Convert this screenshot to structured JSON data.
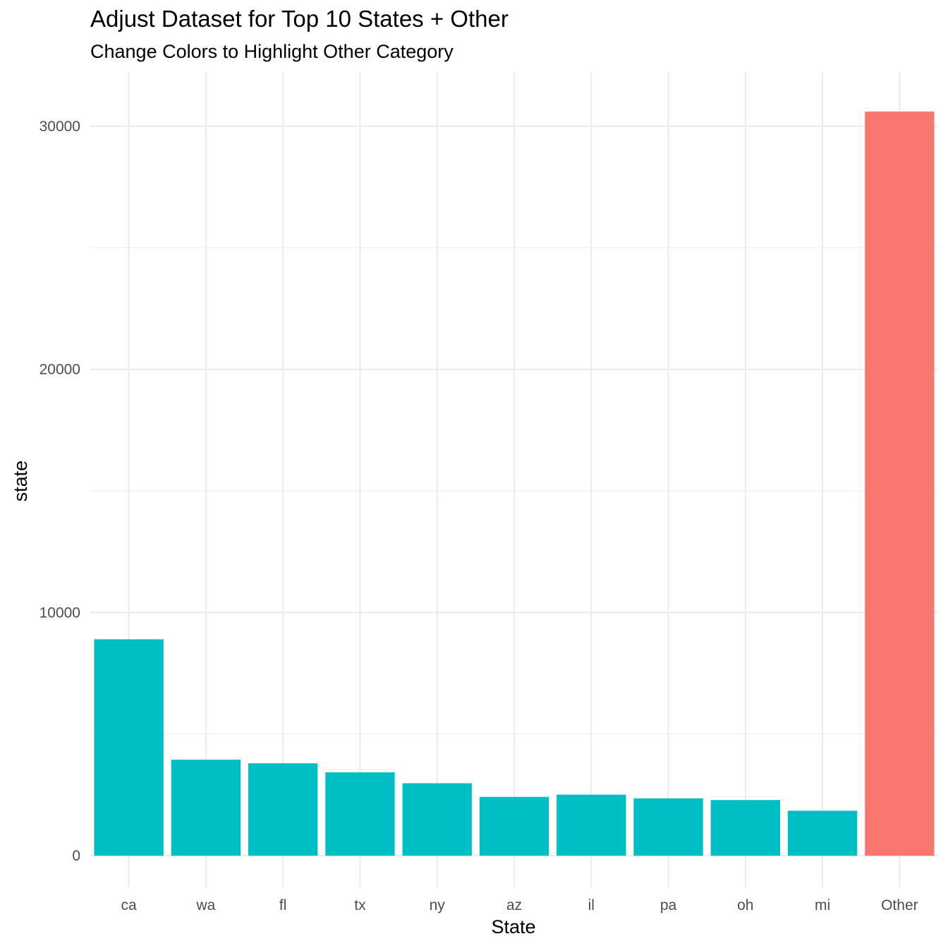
{
  "chart_data": {
    "type": "bar",
    "title": "Adjust Dataset for Top 10 States + Other",
    "subtitle": "Change Colors to Highlight Other Category",
    "xlabel": "State",
    "ylabel": "state",
    "categories": [
      "ca",
      "wa",
      "fl",
      "tx",
      "ny",
      "az",
      "il",
      "pa",
      "oh",
      "mi",
      "Other"
    ],
    "values": [
      8900,
      3950,
      3800,
      3430,
      2980,
      2420,
      2510,
      2360,
      2290,
      1850,
      30600
    ],
    "highlight": [
      false,
      false,
      false,
      false,
      false,
      false,
      false,
      false,
      false,
      false,
      true
    ],
    "yticks": [
      0,
      10000,
      20000,
      30000
    ],
    "ylim": [
      -1300,
      32200
    ],
    "grid": true,
    "legend": "none",
    "colors": {
      "default": "#00BFC4",
      "highlight": "#F8766D",
      "grid": "#ebebeb"
    }
  }
}
